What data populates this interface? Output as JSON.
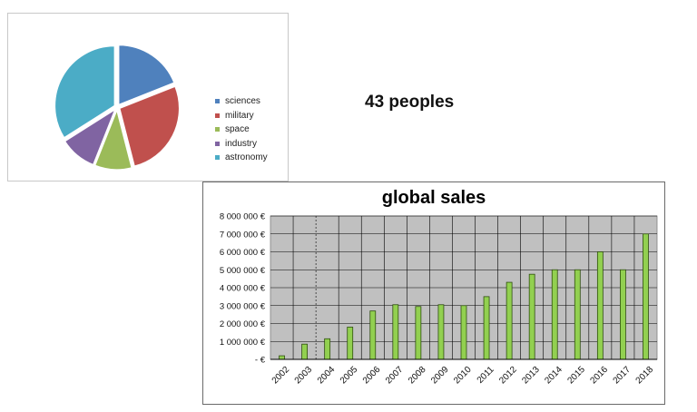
{
  "header": {
    "people_count": "43 peoples"
  },
  "chart_data": [
    {
      "type": "pie",
      "categories": [
        "sciences",
        "military",
        "space",
        "industry",
        "astronomy"
      ],
      "values": [
        19,
        27,
        10,
        10,
        34
      ],
      "colors": [
        "#4f81bd",
        "#c0504d",
        "#9bbb59",
        "#8064a2",
        "#4bacc6"
      ],
      "legend": "right",
      "title": "",
      "exploded": true
    },
    {
      "type": "bar",
      "title": "global sales",
      "categories": [
        "2002",
        "2003",
        "2004",
        "2005",
        "2006",
        "2007",
        "2008",
        "2009",
        "2010",
        "2011",
        "2012",
        "2013",
        "2014",
        "2015",
        "2016",
        "2017",
        "2018"
      ],
      "values": [
        200000,
        850000,
        1150000,
        1800000,
        2700000,
        3050000,
        2950000,
        3050000,
        3000000,
        3500000,
        4300000,
        4750000,
        5000000,
        5000000,
        6000000,
        5000000,
        7000000
      ],
      "ylim": [
        0,
        8000000
      ],
      "ytick_labels": [
        "-   €",
        "1 000 000 €",
        "2 000 000 €",
        "3 000 000 €",
        "4 000 000 €",
        "5 000 000 €",
        "6 000 000 €",
        "7 000 000 €",
        "8 000 000 €"
      ],
      "bar_color": "#92d050",
      "plot_background": "#c0c0c0",
      "grid": true,
      "legend": "none",
      "annotations": [
        "dashed vertical line between 2003 and 2004"
      ]
    }
  ]
}
